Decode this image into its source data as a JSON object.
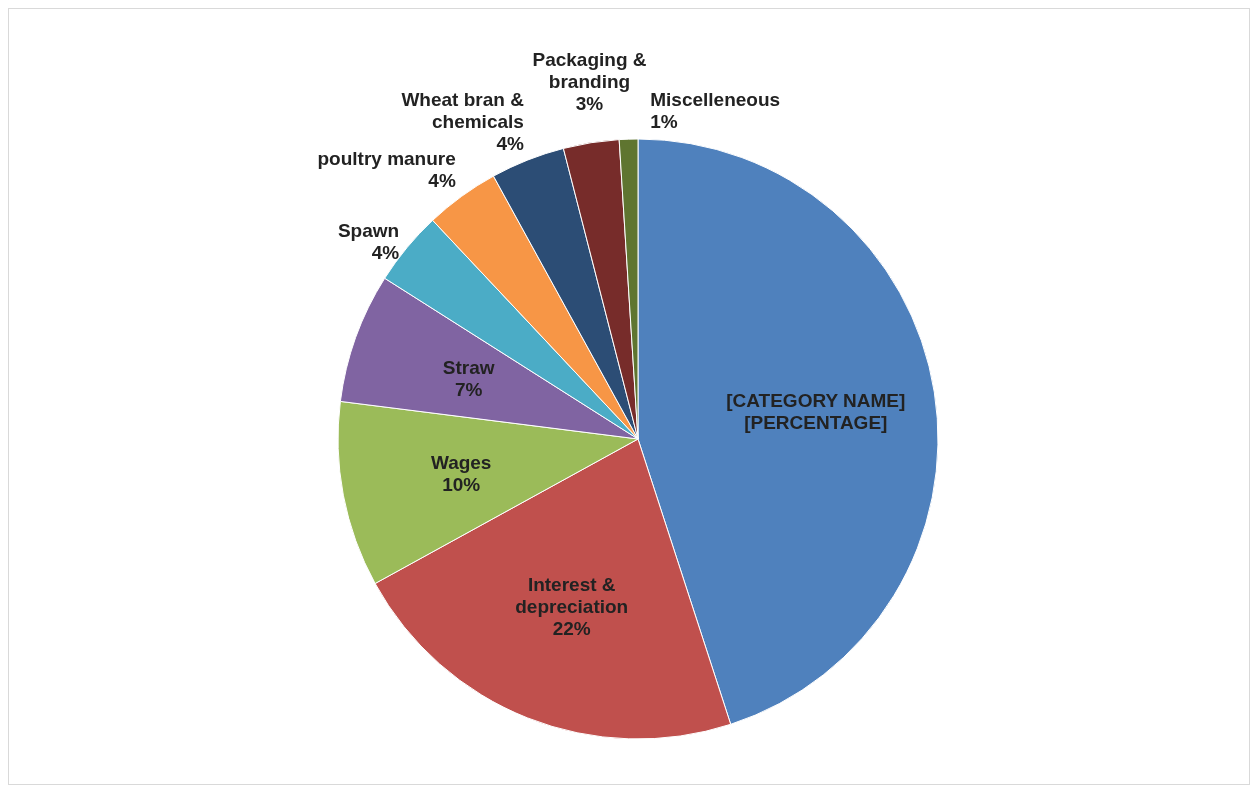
{
  "chart_data": {
    "type": "pie",
    "categories": [
      "[CATEGORY NAME]",
      "Interest & depreciation",
      "Wages",
      "Straw",
      "Spawn",
      "poultry manure",
      "Wheat bran & chemicals",
      "Packaging & branding",
      "Miscelleneous"
    ],
    "values": [
      45,
      22,
      10,
      7,
      4,
      4,
      4,
      3,
      1
    ],
    "value_labels": [
      "[PERCENTAGE]",
      "22%",
      "10%",
      "7%",
      "4%",
      "4%",
      "4%",
      "3%",
      "1%"
    ],
    "colors": [
      "#4f81bd",
      "#c0504d",
      "#9bbb59",
      "#8064a2",
      "#4bacc6",
      "#f79646",
      "#2c4d75",
      "#772c2a",
      "#5f7530"
    ],
    "legend": false
  }
}
